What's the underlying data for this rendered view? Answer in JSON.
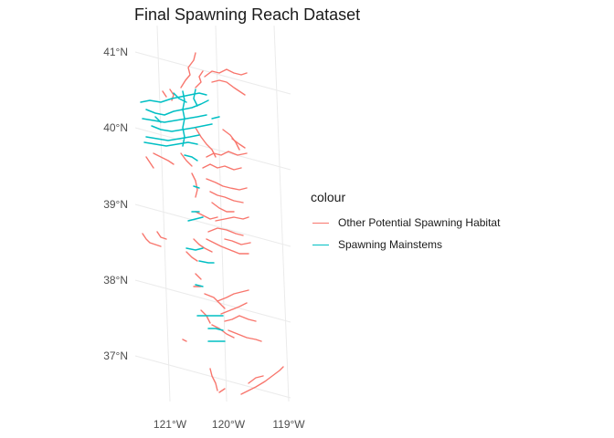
{
  "title": "Final Spawning Reach Dataset",
  "legend": {
    "title": "colour",
    "items": [
      {
        "label": "Other Potential Spawning Habitat",
        "color": "#F8766D"
      },
      {
        "label": "Spawning Mainstems",
        "color": "#00BFC4"
      }
    ]
  },
  "graticule": {
    "latitudes": [
      {
        "label": "41°N",
        "value": 41
      },
      {
        "label": "40°N",
        "value": 40
      },
      {
        "label": "39°N",
        "value": 39
      },
      {
        "label": "38°N",
        "value": 38
      },
      {
        "label": "37°N",
        "value": 37
      }
    ],
    "longitudes": [
      {
        "label": "121°W",
        "value": -121
      },
      {
        "label": "120°W",
        "value": -120
      },
      {
        "label": "119°W",
        "value": -119
      }
    ],
    "grid_color": "#EBEBEB"
  }
}
